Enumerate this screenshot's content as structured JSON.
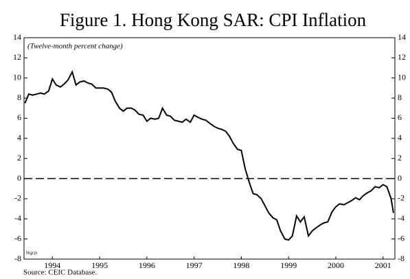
{
  "chart_data": {
    "type": "line",
    "title": "Figure 1. Hong Kong SAR: CPI Inflation",
    "subtitle": "(Twelve-month percent change)",
    "annotation": "hkgcpi",
    "source": "Source: CEIC Database.",
    "x": [
      1993.92,
      1994.0,
      1994.08,
      1994.17,
      1994.25,
      1994.33,
      1994.42,
      1994.5,
      1994.58,
      1994.67,
      1994.75,
      1994.83,
      1994.92,
      1995.0,
      1995.08,
      1995.17,
      1995.25,
      1995.33,
      1995.42,
      1995.5,
      1995.58,
      1995.67,
      1995.75,
      1995.83,
      1995.92,
      1996.0,
      1996.08,
      1996.17,
      1996.25,
      1996.33,
      1996.42,
      1996.5,
      1996.58,
      1996.67,
      1996.75,
      1996.83,
      1996.92,
      1997.0,
      1997.08,
      1997.17,
      1997.25,
      1997.33,
      1997.42,
      1997.5,
      1997.58,
      1997.67,
      1997.75,
      1997.83,
      1997.92,
      1998.0,
      1998.08,
      1998.17,
      1998.25,
      1998.33,
      1998.42,
      1998.5,
      1998.58,
      1998.67,
      1998.75,
      1998.83,
      1998.92,
      1999.0,
      1999.08,
      1999.17,
      1999.25,
      1999.33,
      1999.42,
      1999.5,
      1999.58,
      1999.67,
      1999.75,
      1999.83,
      1999.92,
      2000.0,
      2000.08,
      2000.17,
      2000.25,
      2000.33,
      2000.42,
      2000.5,
      2000.58,
      2000.67,
      2000.75,
      2000.83,
      2000.92,
      2001.0,
      2001.08,
      2001.17,
      2001.25,
      2001.33,
      2001.42,
      2001.5,
      2001.58,
      2001.67,
      2001.72
    ],
    "series": [
      {
        "color": "#000000",
        "values": [
          7.5,
          8.4,
          8.3,
          8.4,
          8.5,
          8.4,
          8.7,
          9.9,
          9.3,
          9.1,
          9.4,
          9.8,
          10.6,
          9.3,
          9.6,
          9.7,
          9.5,
          9.4,
          9.0,
          9.0,
          9.0,
          8.9,
          8.6,
          7.7,
          7.0,
          6.7,
          7.0,
          7.0,
          6.8,
          6.4,
          6.3,
          5.7,
          6.0,
          5.9,
          6.0,
          7.0,
          6.3,
          6.2,
          5.8,
          5.7,
          5.6,
          5.9,
          5.6,
          6.3,
          6.1,
          5.9,
          5.8,
          5.5,
          5.2,
          5.0,
          4.9,
          4.7,
          4.2,
          3.5,
          2.9,
          2.8,
          1.0,
          -0.4,
          -1.5,
          -1.6,
          -2.0,
          -2.7,
          -3.4,
          -3.9,
          -4.1,
          -5.2,
          -6.0,
          -6.1,
          -5.7,
          -3.7,
          -4.3,
          -3.8,
          -5.7,
          -5.2,
          -4.9,
          -4.6,
          -4.4,
          -4.3,
          -3.3,
          -2.8,
          -2.5,
          -2.6,
          -2.4,
          -2.2,
          -1.9,
          -2.1,
          -1.7,
          -1.4,
          -1.2,
          -0.8,
          -0.9,
          -0.6,
          -0.8,
          -2.0,
          -3.4
        ]
      }
    ],
    "zero_line": 0,
    "xlim": [
      1993.9,
      2001.75
    ],
    "xticks": [
      {
        "value": 1994.5,
        "label": "1994"
      },
      {
        "value": 1995.5,
        "label": "1995"
      },
      {
        "value": 1996.5,
        "label": "1996"
      },
      {
        "value": 1997.5,
        "label": "1997"
      },
      {
        "value": 1998.5,
        "label": "1998"
      },
      {
        "value": 1999.5,
        "label": "1999"
      },
      {
        "value": 2000.5,
        "label": "2000"
      },
      {
        "value": 2001.5,
        "label": "2001"
      }
    ],
    "ylim": [
      -8,
      14
    ],
    "yticks": [
      -8,
      -6,
      -4,
      -2,
      0,
      2,
      4,
      6,
      8,
      10,
      12,
      14
    ],
    "right_axis_mirror": true
  }
}
